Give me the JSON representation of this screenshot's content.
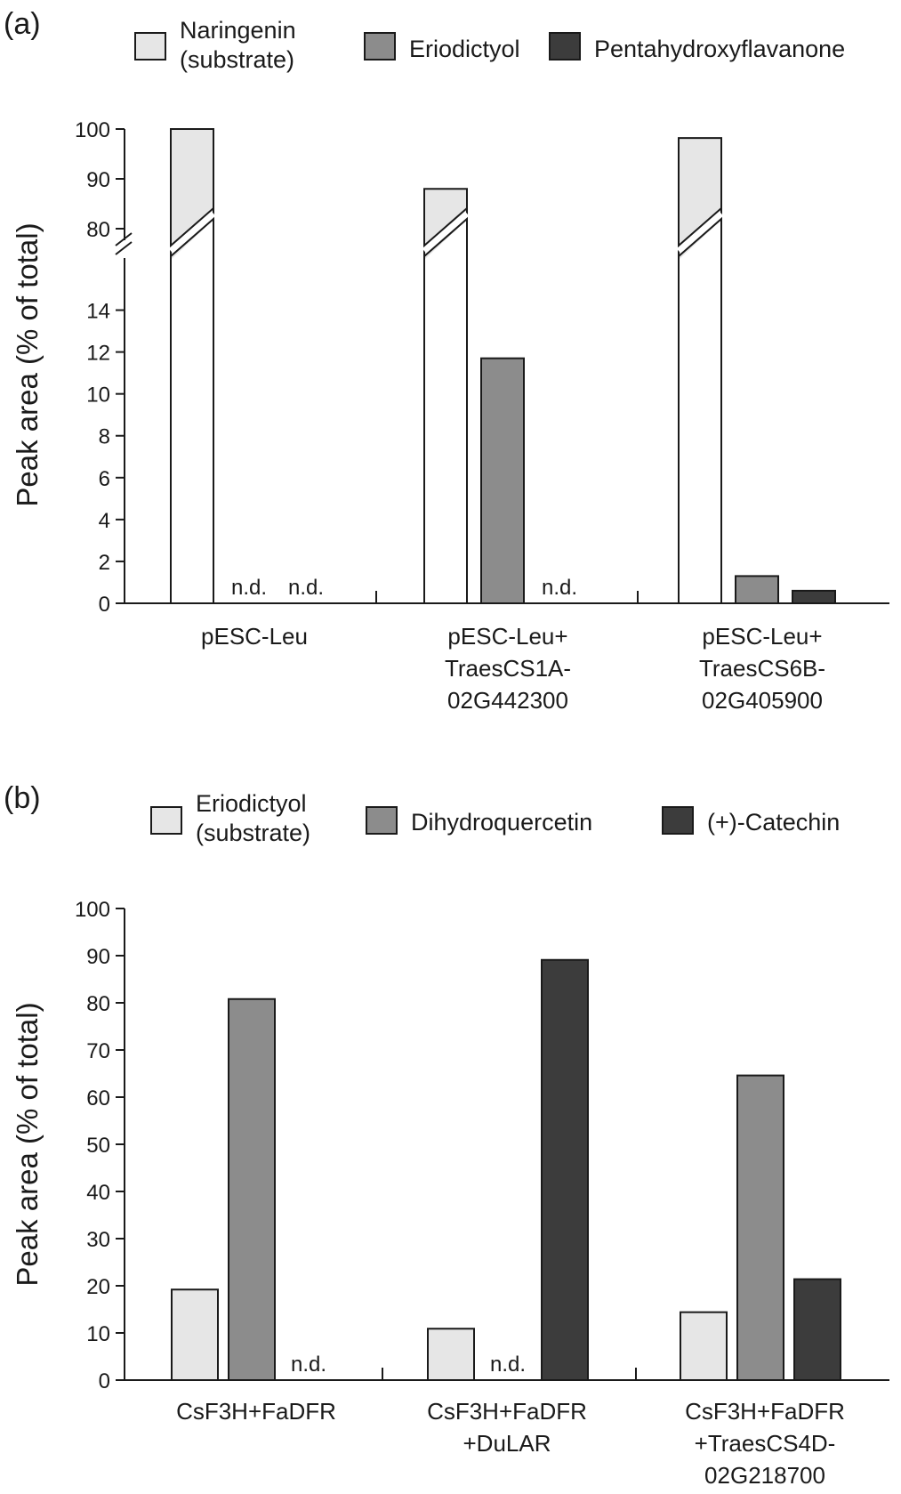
{
  "colors": {
    "light": "#e6e6e6",
    "mid": "#8c8c8c",
    "dark": "#3c3c3c",
    "outline": "#1a1a1a"
  },
  "chart_data": [
    {
      "panel": "(a)",
      "type": "bar",
      "ylabel": "Peak area (% of total)",
      "axis_break": {
        "lower": [
          0,
          15
        ],
        "upper": [
          75,
          100
        ]
      },
      "yticks_lower": [
        0,
        2,
        4,
        6,
        8,
        10,
        12,
        14
      ],
      "yticks_upper": [
        80,
        90,
        100
      ],
      "legend": [
        {
          "label": "Naringenin\n(substrate)",
          "color": "light"
        },
        {
          "label": "Eriodictyol",
          "color": "mid"
        },
        {
          "label": "Pentahydroxyflavanone",
          "color": "dark"
        }
      ],
      "categories": [
        "pESC-Leu",
        "pESC-Leu+\nTraesCS1A-\n02G442300",
        "pESC-Leu+\nTraesCS6B-\n02G405900"
      ],
      "series": [
        {
          "name": "Naringenin (substrate)",
          "color": "light",
          "values": [
            100,
            88,
            98.2
          ]
        },
        {
          "name": "Eriodictyol",
          "color": "mid",
          "values": [
            null,
            11.7,
            1.3
          ]
        },
        {
          "name": "Pentahydroxyflavanone",
          "color": "dark",
          "values": [
            null,
            null,
            0.6
          ]
        }
      ],
      "nd_label": "n.d."
    },
    {
      "panel": "(b)",
      "type": "bar",
      "ylabel": "Peak area (% of total)",
      "ylim": [
        0,
        100
      ],
      "yticks": [
        0,
        10,
        20,
        30,
        40,
        50,
        60,
        70,
        80,
        90,
        100
      ],
      "legend": [
        {
          "label": "Eriodictyol\n(substrate)",
          "color": "light"
        },
        {
          "label": "Dihydroquercetin",
          "color": "mid"
        },
        {
          "label": "(+)-Catechin",
          "color": "dark"
        }
      ],
      "categories": [
        "CsF3H+FaDFR",
        "CsF3H+FaDFR\n+DuLAR",
        "CsF3H+FaDFR\n+TraesCS4D-\n02G218700"
      ],
      "series": [
        {
          "name": "Eriodictyol (substrate)",
          "color": "light",
          "values": [
            19.2,
            10.9,
            14.4
          ]
        },
        {
          "name": "Dihydroquercetin",
          "color": "mid",
          "values": [
            80.8,
            null,
            64.6
          ]
        },
        {
          "name": "(+)-Catechin",
          "color": "dark",
          "values": [
            null,
            89.1,
            21.4
          ]
        }
      ],
      "nd_label": "n.d."
    }
  ]
}
